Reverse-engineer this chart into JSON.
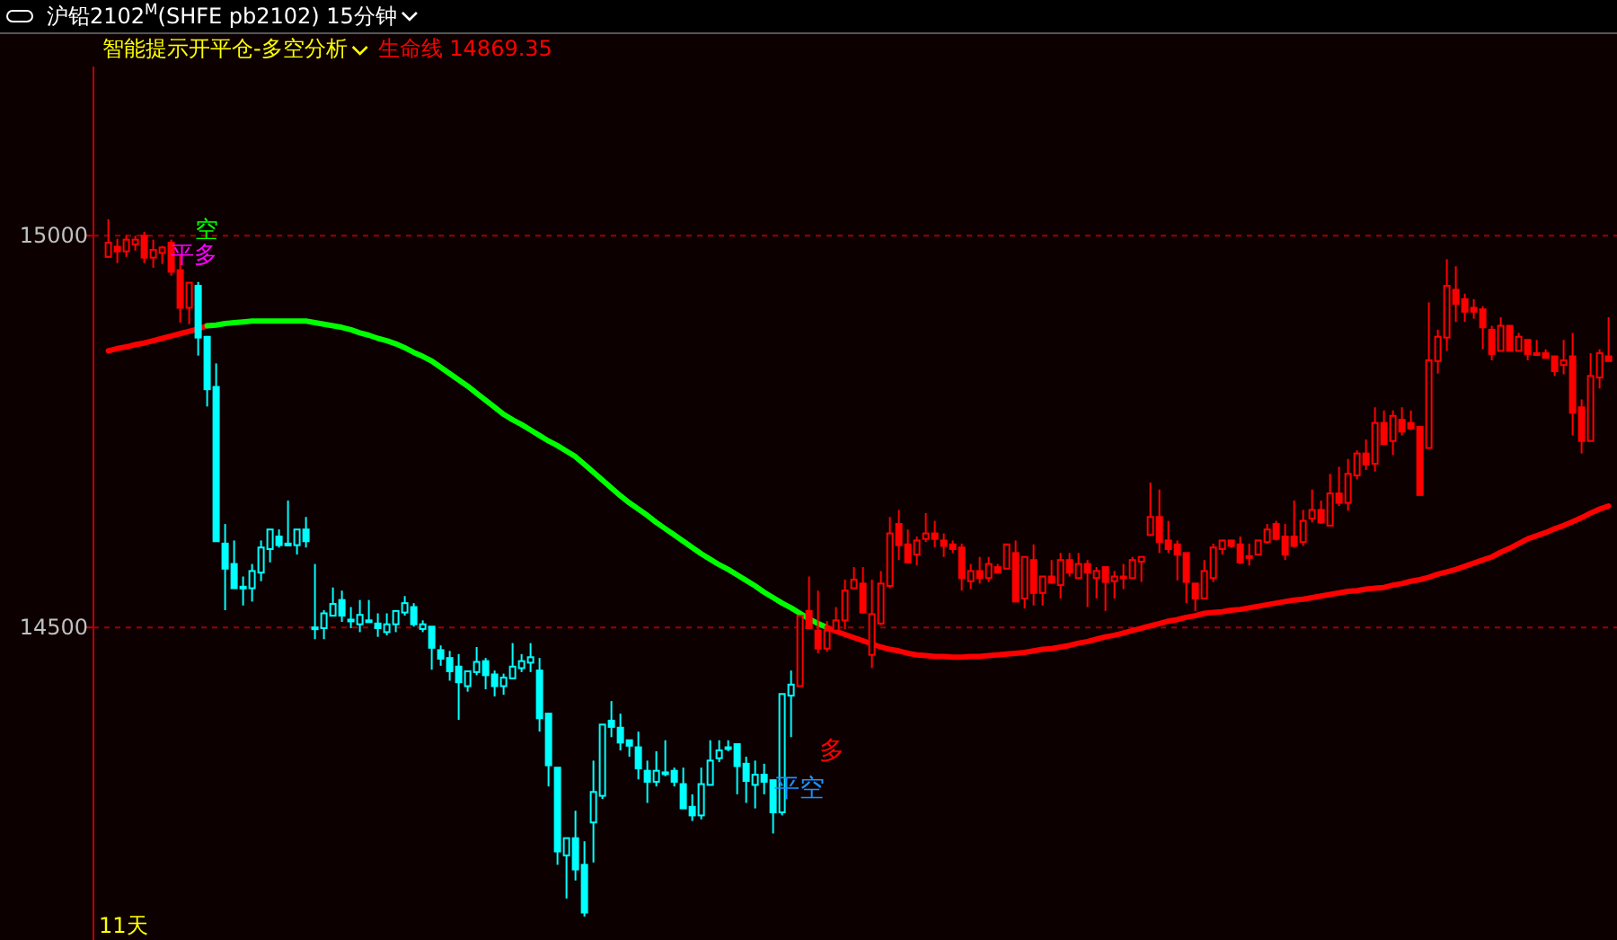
{
  "chart_data": {
    "type": "candlestick",
    "title": "沪铅2102$^{M}$(SHFE pb2102)  15分钟",
    "subtitle": "智能提示开平仓-多空分析",
    "categories": [
      null,
      null,
      null,
      null,
      null,
      null,
      null,
      null,
      null,
      null,
      null,
      null,
      null,
      null,
      null,
      null,
      null,
      null,
      null,
      null,
      null,
      null,
      null,
      null,
      null,
      null,
      null,
      null,
      null,
      null,
      null,
      null,
      null,
      null,
      null,
      null,
      null,
      null,
      null,
      null,
      null,
      null,
      null,
      null,
      null,
      null,
      null,
      null,
      null,
      null,
      null,
      null,
      null,
      null,
      null,
      null,
      null,
      null,
      null,
      null,
      null,
      null,
      null,
      null,
      null,
      null,
      null,
      null,
      null,
      null,
      null,
      null,
      null,
      null,
      null,
      null,
      null,
      null,
      null,
      null,
      null,
      null,
      null,
      null,
      null,
      null,
      null,
      null,
      null,
      null,
      null,
      null,
      null,
      null,
      null,
      null,
      null,
      null,
      null,
      null,
      null,
      null,
      null,
      null,
      null,
      null,
      null,
      null,
      null,
      null,
      null,
      null,
      null,
      null,
      null,
      null,
      null,
      null,
      null,
      null,
      null,
      null,
      null,
      null,
      null,
      null,
      null,
      null,
      null,
      null,
      null,
      null,
      null,
      null,
      null,
      null,
      null,
      null,
      null,
      null,
      null,
      null,
      null,
      null,
      null,
      null,
      null,
      null,
      null,
      null,
      null,
      null,
      null,
      null,
      null,
      null,
      null,
      null,
      null,
      null,
      null,
      null,
      null,
      null,
      null,
      null,
      null,
      null
    ],
    "ohlc": [
      [
        14973,
        15021,
        14972,
        14991
      ],
      [
        14986,
        14996,
        14965,
        14980
      ],
      [
        14980,
        15001,
        14973,
        14995
      ],
      [
        14989,
        15000,
        14981,
        14995
      ],
      [
        15000,
        15005,
        14965,
        14972
      ],
      [
        14972,
        14995,
        14959,
        14982
      ],
      [
        14978,
        14987,
        14964,
        14985
      ],
      [
        14991,
        14995,
        14949,
        14954
      ],
      [
        14956,
        14975,
        14889,
        14908
      ],
      [
        14908,
        14940,
        14887,
        14940
      ],
      [
        14936,
        14941,
        14847,
        14870
      ],
      [
        14871,
        14872,
        14782,
        14804
      ],
      [
        14807,
        14837,
        14610,
        14610
      ],
      [
        14607,
        14632,
        14522,
        14575
      ],
      [
        14581,
        14611,
        14550,
        14550
      ],
      [
        14552,
        14565,
        14528,
        14551
      ],
      [
        14550,
        14581,
        14533,
        14572
      ],
      [
        14570,
        14611,
        14559,
        14602
      ],
      [
        14600,
        14625,
        14583,
        14625
      ],
      [
        14616,
        14625,
        14602,
        14605
      ],
      [
        14607,
        14662,
        14605,
        14606
      ],
      [
        14605,
        14625,
        14593,
        14625
      ],
      [
        14625,
        14641,
        14602,
        14610
      ],
      [
        14500,
        14581,
        14485,
        14499
      ],
      [
        14499,
        14522,
        14485,
        14518
      ],
      [
        14515,
        14551,
        14514,
        14530
      ],
      [
        14535,
        14547,
        14507,
        14515
      ],
      [
        14510,
        14526,
        14499,
        14509
      ],
      [
        14504,
        14535,
        14494,
        14516
      ],
      [
        14509,
        14535,
        14507,
        14508
      ],
      [
        14505,
        14518,
        14488,
        14499
      ],
      [
        14494,
        14518,
        14490,
        14504
      ],
      [
        14504,
        14521,
        14494,
        14521
      ],
      [
        14519,
        14540,
        14515,
        14531
      ],
      [
        14526,
        14531,
        14501,
        14504
      ],
      [
        14498,
        14509,
        14494,
        14504
      ],
      [
        14501,
        14501,
        14446,
        14474
      ],
      [
        14471,
        14477,
        14451,
        14460
      ],
      [
        14461,
        14470,
        14432,
        14444
      ],
      [
        14450,
        14466,
        14382,
        14430
      ],
      [
        14425,
        14444,
        14418,
        14444
      ],
      [
        14443,
        14475,
        14439,
        14456
      ],
      [
        14457,
        14461,
        14421,
        14439
      ],
      [
        14440,
        14445,
        14412,
        14425
      ],
      [
        14425,
        14441,
        14414,
        14436
      ],
      [
        14435,
        14480,
        14435,
        14450
      ],
      [
        14448,
        14466,
        14443,
        14457
      ],
      [
        14455,
        14480,
        14443,
        14462
      ],
      [
        14445,
        14461,
        14367,
        14384
      ],
      [
        14390,
        14390,
        14297,
        14324
      ],
      [
        14321,
        14321,
        14197,
        14214
      ],
      [
        14209,
        14231,
        14154,
        14231
      ],
      [
        14231,
        14266,
        14177,
        14191
      ],
      [
        14197,
        14227,
        14131,
        14136
      ],
      [
        14251,
        14330,
        14200,
        14290
      ],
      [
        14285,
        14376,
        14281,
        14376
      ],
      [
        14381,
        14406,
        14360,
        14373
      ],
      [
        14372,
        14390,
        14343,
        14353
      ],
      [
        14356,
        14356,
        14335,
        14349
      ],
      [
        14347,
        14367,
        14306,
        14320
      ],
      [
        14317,
        14330,
        14276,
        14303
      ],
      [
        14303,
        14342,
        14297,
        14317
      ],
      [
        14315,
        14356,
        14310,
        14314
      ],
      [
        14317,
        14321,
        14297,
        14303
      ],
      [
        14300,
        14321,
        14269,
        14269
      ],
      [
        14271,
        14287,
        14253,
        14260
      ],
      [
        14260,
        14321,
        14255,
        14300
      ],
      [
        14299,
        14356,
        14299,
        14330
      ],
      [
        14333,
        14356,
        14328,
        14343
      ],
      [
        14347,
        14356,
        14342,
        14346
      ],
      [
        14351,
        14351,
        14287,
        14323
      ],
      [
        14326,
        14335,
        14276,
        14304
      ],
      [
        14299,
        14330,
        14269,
        14312
      ],
      [
        14312,
        14326,
        14287,
        14303
      ],
      [
        14305,
        14305,
        14237,
        14264
      ],
      [
        14264,
        14415,
        14260,
        14415
      ],
      [
        14413,
        14445,
        14360,
        14427
      ],
      [
        14425,
        14515,
        14425,
        14515
      ],
      [
        14521,
        14565,
        14499,
        14499
      ],
      [
        14496,
        14547,
        14467,
        14473
      ],
      [
        14473,
        14508,
        14469,
        14496
      ],
      [
        14496,
        14526,
        14496,
        14509
      ],
      [
        14509,
        14561,
        14498,
        14547
      ],
      [
        14550,
        14577,
        14550,
        14561
      ],
      [
        14556,
        14577,
        14518,
        14519
      ],
      [
        14465,
        14561,
        14448,
        14517
      ],
      [
        14505,
        14572,
        14503,
        14556
      ],
      [
        14553,
        14641,
        14550,
        14620
      ],
      [
        14632,
        14650,
        14586,
        14605
      ],
      [
        14606,
        14625,
        14583,
        14583
      ],
      [
        14593,
        14616,
        14579,
        14611
      ],
      [
        14613,
        14646,
        14609,
        14620
      ],
      [
        14620,
        14636,
        14602,
        14613
      ],
      [
        14611,
        14620,
        14590,
        14604
      ],
      [
        14606,
        14611,
        14595,
        14600
      ],
      [
        14602,
        14607,
        14547,
        14563
      ],
      [
        14559,
        14581,
        14549,
        14572
      ],
      [
        14572,
        14590,
        14556,
        14563
      ],
      [
        14563,
        14590,
        14558,
        14581
      ],
      [
        14577,
        14581,
        14570,
        14570
      ],
      [
        14575,
        14606,
        14575,
        14606
      ],
      [
        14595,
        14611,
        14533,
        14533
      ],
      [
        14537,
        14590,
        14524,
        14590
      ],
      [
        14586,
        14606,
        14528,
        14544
      ],
      [
        14544,
        14565,
        14528,
        14565
      ],
      [
        14565,
        14586,
        14556,
        14557
      ],
      [
        14554,
        14595,
        14537,
        14586
      ],
      [
        14586,
        14595,
        14565,
        14570
      ],
      [
        14563,
        14595,
        14563,
        14581
      ],
      [
        14581,
        14586,
        14526,
        14570
      ],
      [
        14563,
        14577,
        14537,
        14572
      ],
      [
        14577,
        14577,
        14521,
        14558
      ],
      [
        14559,
        14572,
        14537,
        14565
      ],
      [
        14565,
        14581,
        14549,
        14564
      ],
      [
        14563,
        14590,
        14563,
        14586
      ],
      [
        14584,
        14590,
        14558,
        14590
      ],
      [
        14618,
        14685,
        14618,
        14641
      ],
      [
        14641,
        14676,
        14595,
        14609
      ],
      [
        14611,
        14636,
        14595,
        14600
      ],
      [
        14606,
        14611,
        14560,
        14593
      ],
      [
        14595,
        14595,
        14531,
        14558
      ],
      [
        14556,
        14556,
        14521,
        14537
      ],
      [
        14537,
        14586,
        14537,
        14572
      ],
      [
        14563,
        14607,
        14558,
        14602
      ],
      [
        14600,
        14611,
        14593,
        14611
      ],
      [
        14611,
        14611,
        14602,
        14604
      ],
      [
        14606,
        14616,
        14581,
        14583
      ],
      [
        14591,
        14607,
        14579,
        14590
      ],
      [
        14593,
        14611,
        14593,
        14611
      ],
      [
        14609,
        14632,
        14607,
        14625
      ],
      [
        14632,
        14636,
        14611,
        14613
      ],
      [
        14616,
        14632,
        14586,
        14593
      ],
      [
        14616,
        14662,
        14602,
        14604
      ],
      [
        14609,
        14650,
        14604,
        14636
      ],
      [
        14639,
        14676,
        14634,
        14650
      ],
      [
        14650,
        14662,
        14632,
        14634
      ],
      [
        14630,
        14696,
        14630,
        14671
      ],
      [
        14671,
        14705,
        14655,
        14659
      ],
      [
        14659,
        14715,
        14649,
        14696
      ],
      [
        14694,
        14726,
        14689,
        14722
      ],
      [
        14722,
        14740,
        14701,
        14708
      ],
      [
        14709,
        14781,
        14699,
        14761
      ],
      [
        14761,
        14777,
        14734,
        14734
      ],
      [
        14738,
        14777,
        14720,
        14770
      ],
      [
        14765,
        14781,
        14745,
        14750
      ],
      [
        14761,
        14777,
        14752,
        14754
      ],
      [
        14756,
        14756,
        14669,
        14669
      ],
      [
        14729,
        14915,
        14729,
        14841
      ],
      [
        14840,
        14880,
        14824,
        14871
      ],
      [
        14870,
        14970,
        14853,
        14936
      ],
      [
        14931,
        14961,
        14890,
        14913
      ],
      [
        14919,
        14926,
        14890,
        14903
      ],
      [
        14908,
        14919,
        14894,
        14903
      ],
      [
        14906,
        14910,
        14855,
        14883
      ],
      [
        14880,
        14885,
        14841,
        14849
      ],
      [
        14853,
        14896,
        14853,
        14885
      ],
      [
        14885,
        14885,
        14853,
        14853
      ],
      [
        14853,
        14876,
        14853,
        14871
      ],
      [
        14867,
        14867,
        14841,
        14849
      ],
      [
        14850,
        14867,
        14849,
        14849
      ],
      [
        14850,
        14855,
        14844,
        14844
      ],
      [
        14846,
        14846,
        14821,
        14827
      ],
      [
        14835,
        14867,
        14823,
        14841
      ],
      [
        14846,
        14876,
        14745,
        14774
      ],
      [
        14781,
        14791,
        14722,
        14738
      ],
      [
        14738,
        14850,
        14738,
        14821
      ],
      [
        14819,
        14855,
        14805,
        14850
      ],
      [
        14846,
        14896,
        14840,
        14840
      ]
    ],
    "colors": [
      "#ff0000",
      "#ff0000",
      "#ff0000",
      "#ff0000",
      "#ff0000",
      "#ff0000",
      "#ff0000",
      "#ff0000",
      "#ff0000",
      "#ff0000",
      "#00ffff",
      "#00ffff",
      "#00ffff",
      "#00ffff",
      "#00ffff",
      "#00ffff",
      "#00ffff",
      "#00ffff",
      "#00ffff",
      "#00ffff",
      "#00ffff",
      "#00ffff",
      "#00ffff",
      "#00ffff",
      "#00ffff",
      "#00ffff",
      "#00ffff",
      "#00ffff",
      "#00ffff",
      "#00ffff",
      "#00ffff",
      "#00ffff",
      "#00ffff",
      "#00ffff",
      "#00ffff",
      "#00ffff",
      "#00ffff",
      "#00ffff",
      "#00ffff",
      "#00ffff",
      "#00ffff",
      "#00ffff",
      "#00ffff",
      "#00ffff",
      "#00ffff",
      "#00ffff",
      "#00ffff",
      "#00ffff",
      "#00ffff",
      "#00ffff",
      "#00ffff",
      "#00ffff",
      "#00ffff",
      "#00ffff",
      "#00ffff",
      "#00ffff",
      "#00ffff",
      "#00ffff",
      "#00ffff",
      "#00ffff",
      "#00ffff",
      "#00ffff",
      "#00ffff",
      "#00ffff",
      "#00ffff",
      "#00ffff",
      "#00ffff",
      "#00ffff",
      "#00ffff",
      "#00ffff",
      "#00ffff",
      "#00ffff",
      "#00ffff",
      "#00ffff",
      "#00ffff",
      "#00ffff",
      "#00ffff",
      "#ff0000",
      "#ff0000",
      "#ff0000",
      "#ff0000",
      "#ff0000",
      "#ff0000",
      "#ff0000",
      "#ff0000",
      "#ff0000",
      "#ff0000",
      "#ff0000",
      "#ff0000",
      "#ff0000",
      "#ff0000",
      "#ff0000",
      "#ff0000",
      "#ff0000",
      "#ff0000",
      "#ff0000",
      "#ff0000",
      "#ff0000",
      "#ff0000",
      "#ff0000",
      "#ff0000",
      "#ff0000",
      "#ff0000",
      "#ff0000",
      "#ff0000",
      "#ff0000",
      "#ff0000",
      "#ff0000",
      "#ff0000",
      "#ff0000",
      "#ff0000",
      "#ff0000",
      "#ff0000",
      "#ff0000",
      "#ff0000",
      "#ff0000",
      "#ff0000",
      "#ff0000",
      "#ff0000",
      "#ff0000",
      "#ff0000",
      "#ff0000",
      "#ff0000",
      "#ff0000",
      "#ff0000",
      "#ff0000",
      "#ff0000",
      "#ff0000",
      "#ff0000",
      "#ff0000",
      "#ff0000",
      "#ff0000",
      "#ff0000",
      "#ff0000",
      "#ff0000",
      "#ff0000",
      "#ff0000",
      "#ff0000",
      "#ff0000",
      "#ff0000",
      "#ff0000",
      "#ff0000",
      "#ff0000",
      "#ff0000",
      "#ff0000",
      "#ff0000",
      "#ff0000",
      "#ff0000",
      "#ff0000",
      "#ff0000",
      "#ff0000",
      "#ff0000",
      "#ff0000",
      "#ff0000",
      "#ff0000",
      "#ff0000",
      "#ff0000",
      "#ff0000",
      "#ff0000",
      "#ff0000",
      "#ff0000",
      "#ff0000",
      "#ff0000",
      "#ff0000",
      "#ff0000",
      "#ff0000",
      "#ff0000",
      "#ff0000"
    ],
    "series": [
      {
        "type": "line",
        "name": "生命线",
        "color": "#ff0000",
        "values": [
          14853,
          14856,
          14858,
          14861,
          14863,
          14866,
          14869,
          14872,
          14875,
          14878,
          14881,
          14885,
          null,
          null,
          null,
          null,
          null,
          null,
          null,
          null,
          null,
          null,
          null,
          null,
          null,
          null,
          null,
          null,
          null,
          null,
          null,
          null,
          null,
          null,
          null,
          null,
          null,
          null,
          null,
          null,
          null,
          null,
          null,
          null,
          null,
          null,
          null,
          null,
          null,
          null,
          null,
          null,
          null,
          null,
          null,
          null,
          null,
          null,
          null,
          null,
          null,
          null,
          null,
          null,
          null,
          null,
          null,
          null,
          null,
          null,
          null,
          null,
          null,
          null,
          null,
          null,
          null,
          null,
          null,
          null,
          null,
          null,
          null,
          null,
          null,
          null,
          null,
          null,
          null,
          null,
          null,
          null,
          null,
          null,
          null,
          null,
          null,
          null,
          null,
          null,
          null,
          null,
          null,
          null,
          null,
          null,
          null,
          null,
          null,
          null,
          null,
          null,
          null,
          null,
          null,
          null,
          null,
          null,
          null,
          null,
          null,
          null,
          null,
          null,
          null,
          null,
          null,
          null,
          null,
          null,
          null,
          null,
          null,
          null,
          null,
          null,
          null,
          null,
          null,
          null,
          null,
          null,
          null,
          null,
          null,
          null,
          null,
          null,
          null,
          null,
          null,
          null,
          null,
          null,
          null,
          null,
          null,
          null,
          null,
          null,
          null,
          null,
          null,
          null,
          null,
          null,
          null,
          null
        ]
      },
      {
        "type": "line",
        "color": "#00ff00",
        "values": [
          null,
          null,
          null,
          null,
          null,
          null,
          null,
          null,
          null,
          null,
          null,
          14885,
          14886,
          14888,
          14889,
          14890,
          14891,
          14891,
          14891,
          14891,
          14891,
          14891,
          14891,
          14889,
          14887,
          14885,
          14883,
          14880,
          14876,
          14873,
          14869,
          14866,
          14862,
          14857,
          14851,
          14846,
          14840,
          14832,
          14824,
          14816,
          14808,
          14799,
          14790,
          14781,
          14772,
          14765,
          14759,
          14752,
          14745,
          14738,
          14732,
          14725,
          14718,
          14708,
          14698,
          14688,
          14678,
          14668,
          14659,
          14651,
          14643,
          14634,
          14626,
          14618,
          14610,
          14602,
          14594,
          14587,
          14580,
          14574,
          14567,
          14560,
          14553,
          14545,
          14538,
          14531,
          14525,
          14518,
          14511,
          14505,
          14500,
          null,
          null,
          null,
          null,
          null,
          null,
          null,
          null,
          null,
          null,
          null,
          null,
          null,
          null,
          null,
          null,
          null,
          null,
          null,
          null,
          null,
          null,
          null,
          null,
          null,
          null,
          null,
          null,
          null,
          null,
          null,
          null,
          null,
          null,
          null,
          null,
          null,
          null,
          null,
          null,
          null,
          null,
          null,
          null,
          null,
          null,
          null,
          null,
          null,
          null,
          null,
          null,
          null,
          null,
          null,
          null,
          null,
          null,
          null,
          null,
          null,
          null,
          null,
          null,
          null,
          null,
          null,
          null,
          null,
          null,
          null,
          null,
          null,
          null,
          null,
          null,
          null,
          null,
          null,
          null,
          null,
          null,
          null,
          null,
          null,
          null,
          null
        ]
      },
      {
        "type": "line",
        "color": "#ff0000",
        "values": [
          null,
          null,
          null,
          null,
          null,
          null,
          null,
          null,
          null,
          null,
          null,
          null,
          null,
          null,
          null,
          null,
          null,
          null,
          null,
          null,
          null,
          null,
          null,
          null,
          null,
          null,
          null,
          null,
          null,
          null,
          null,
          null,
          null,
          null,
          null,
          null,
          null,
          null,
          null,
          null,
          null,
          null,
          null,
          null,
          null,
          null,
          null,
          null,
          null,
          null,
          null,
          null,
          null,
          null,
          null,
          null,
          null,
          null,
          null,
          null,
          null,
          null,
          null,
          null,
          null,
          null,
          null,
          null,
          null,
          null,
          null,
          null,
          null,
          null,
          null,
          null,
          null,
          null,
          null,
          null,
          14500,
          14495,
          14491,
          14487,
          14483,
          14479,
          14475,
          14472,
          14470,
          14467,
          14465,
          14464,
          14463,
          14463,
          14462,
          14462,
          14463,
          14463,
          14464,
          14465,
          14466,
          14467,
          14468,
          14470,
          14472,
          14473,
          14475,
          14477,
          14480,
          14482,
          14485,
          14488,
          14490,
          14493,
          14496,
          14499,
          14502,
          14505,
          14508,
          14510,
          14513,
          14515,
          14518,
          14519,
          14520,
          14522,
          14523,
          14525,
          14527,
          14529,
          14531,
          14533,
          14535,
          14536,
          14538,
          14540,
          14542,
          14544,
          14546,
          14547,
          14549,
          14550,
          14551,
          14554,
          14556,
          14559,
          14561,
          14564,
          14568,
          14571,
          14574,
          14578,
          14582,
          14586,
          14590,
          14596,
          14601,
          14607,
          14613,
          14617,
          14621,
          14626,
          14630,
          14635,
          14640,
          14646,
          14651,
          14655
        ]
      }
    ],
    "ylim": [
      14101,
      15216
    ],
    "yticks": [
      14500,
      15000
    ],
    "grid": "y",
    "annotations": [
      "14869.35",
      "11天",
      "空",
      "平多",
      "多",
      "平空"
    ]
  }
}
